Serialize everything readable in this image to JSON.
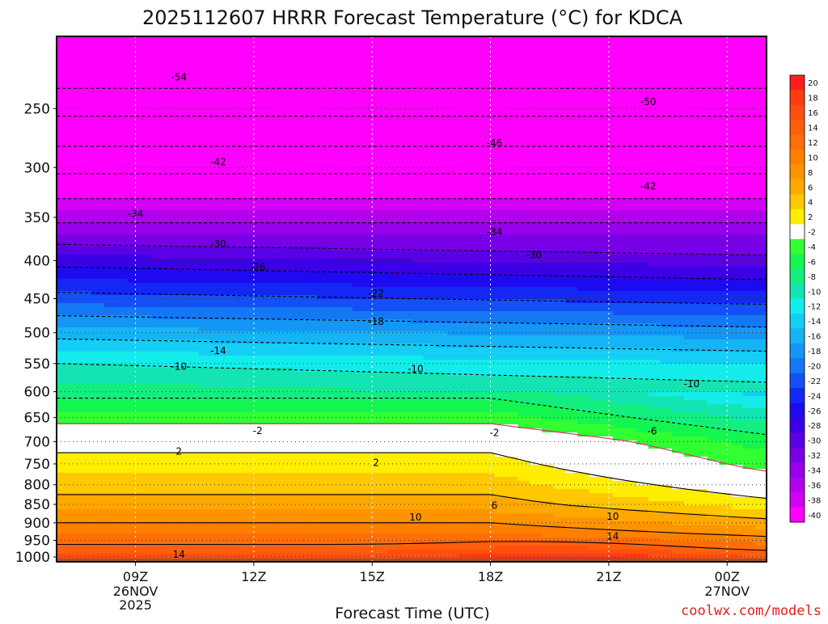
{
  "chart_data": {
    "type": "heatmap",
    "title": "2025112607 HRRR Forecast Temperature (°C) for KDCA",
    "xlabel": "Forecast Time (UTC)",
    "ylabel": "",
    "x_ticks": [
      {
        "label": "09Z",
        "sub": [
          "26NOV",
          "2025"
        ],
        "hour": 9
      },
      {
        "label": "12Z",
        "sub": [],
        "hour": 12
      },
      {
        "label": "15Z",
        "sub": [],
        "hour": 15
      },
      {
        "label": "18Z",
        "sub": [],
        "hour": 18
      },
      {
        "label": "21Z",
        "sub": [],
        "hour": 21
      },
      {
        "label": "00Z",
        "sub": [
          "27NOV"
        ],
        "hour": 24
      }
    ],
    "xlim": [
      7,
      25
    ],
    "y_ticks": [
      250,
      300,
      350,
      400,
      450,
      500,
      550,
      600,
      650,
      700,
      750,
      800,
      850,
      900,
      950,
      1000
    ],
    "ylim": [
      1015,
      200
    ],
    "y_scale": "log",
    "ground_level": 1015,
    "colorbar": {
      "labels": [
        "20",
        "18",
        "16",
        "14",
        "12",
        "10",
        "8",
        "6",
        "4",
        "2",
        "-2",
        "-4",
        "-6",
        "-8",
        "-10",
        "-12",
        "-14",
        "-16",
        "-18",
        "-20",
        "-22",
        "-24",
        "-26",
        "-28",
        "-30",
        "-32",
        "-34",
        "-36",
        "-38",
        "-40"
      ],
      "colors": [
        "#ff1e1e",
        "#ff3c12",
        "#ff4f10",
        "#ff5f0c",
        "#ff6e08",
        "#ff8000",
        "#ff9400",
        "#ffa800",
        "#ffc800",
        "#ffee00",
        "#ffffff",
        "#32ff32",
        "#14f550",
        "#14ee80",
        "#14e4b4",
        "#14ecec",
        "#14cef5",
        "#14b4f5",
        "#1496f5",
        "#1478f5",
        "#1450f5",
        "#1428f5",
        "#1e0af0",
        "#3c00e6",
        "#5a00e6",
        "#7800e6",
        "#9600ea",
        "#b400ee",
        "#d200f5",
        "#ff00ff"
      ]
    },
    "isotherm_labels": [
      {
        "text": "-54",
        "x": 10.1,
        "p": 227
      },
      {
        "text": "-50",
        "x": 22.0,
        "p": 245
      },
      {
        "text": "-46",
        "x": 18.1,
        "p": 278
      },
      {
        "text": "-42",
        "x": 11.1,
        "p": 295
      },
      {
        "text": "-42",
        "x": 22.0,
        "p": 318
      },
      {
        "text": "-34",
        "x": 9.0,
        "p": 346
      },
      {
        "text": "-34",
        "x": 18.1,
        "p": 366
      },
      {
        "text": "-30",
        "x": 11.1,
        "p": 380
      },
      {
        "text": "-30",
        "x": 19.1,
        "p": 393
      },
      {
        "text": "-26",
        "x": 12.1,
        "p": 408
      },
      {
        "text": "-22",
        "x": 15.1,
        "p": 443
      },
      {
        "text": "-18",
        "x": 15.1,
        "p": 483
      },
      {
        "text": "-14",
        "x": 11.1,
        "p": 529
      },
      {
        "text": "-10",
        "x": 10.1,
        "p": 555
      },
      {
        "text": "-10",
        "x": 16.1,
        "p": 559
      },
      {
        "text": "-10",
        "x": 23.1,
        "p": 586
      },
      {
        "text": "-6",
        "x": 22.1,
        "p": 678
      },
      {
        "text": "-2",
        "x": 12.1,
        "p": 677
      },
      {
        "text": "-2",
        "x": 18.1,
        "p": 681
      },
      {
        "text": "2",
        "x": 10.1,
        "p": 722
      },
      {
        "text": "2",
        "x": 15.1,
        "p": 747
      },
      {
        "text": "6",
        "x": 18.1,
        "p": 853
      },
      {
        "text": "10",
        "x": 16.1,
        "p": 885
      },
      {
        "text": "10",
        "x": 21.1,
        "p": 883
      },
      {
        "text": "14",
        "x": 21.1,
        "p": 938
      },
      {
        "text": "14",
        "x": 10.1,
        "p": 992
      }
    ]
  },
  "credit": "coolwx.com/models"
}
